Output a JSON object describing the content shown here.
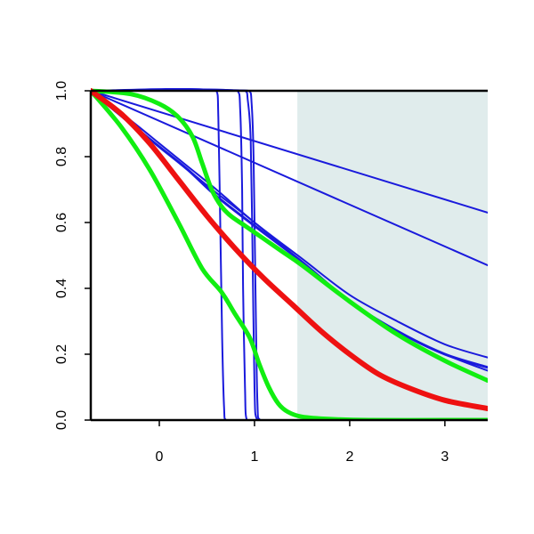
{
  "chart_data": {
    "type": "line",
    "title": "",
    "xlabel": "",
    "ylabel": "",
    "xlim": [
      -0.72,
      3.45
    ],
    "ylim": [
      0.0,
      1.0
    ],
    "grid": false,
    "x_ticks": [
      0,
      1,
      2,
      3
    ],
    "x_tick_labels": [
      "0",
      "1",
      "2",
      "3"
    ],
    "y_ticks": [
      0.0,
      0.2,
      0.4,
      0.6,
      0.8,
      1.0
    ],
    "y_tick_labels": [
      "0.0",
      "0.2",
      "0.4",
      "0.6",
      "0.8",
      "1.0"
    ],
    "shaded_region": {
      "x_start": 1.45,
      "x_end": 3.45,
      "color": "#e0ecec"
    },
    "colors": {
      "blue": "#1a1adc",
      "green": "#11ee11",
      "red": "#ee1111",
      "axis": "#000000"
    },
    "series": [
      {
        "color": "blue",
        "width": 2,
        "x": [
          -0.72,
          3.45
        ],
        "y": [
          1.0,
          0.63
        ]
      },
      {
        "color": "blue",
        "width": 2,
        "x": [
          -0.72,
          3.45
        ],
        "y": [
          1.0,
          0.47
        ]
      },
      {
        "color": "blue",
        "width": 2,
        "x": [
          -0.72,
          -0.3,
          0.0,
          0.3,
          0.6,
          1.0,
          1.5,
          2.0,
          2.5,
          3.0,
          3.45
        ],
        "y": [
          1.0,
          0.91,
          0.84,
          0.77,
          0.7,
          0.6,
          0.49,
          0.38,
          0.3,
          0.23,
          0.19
        ]
      },
      {
        "color": "blue",
        "width": 2,
        "x": [
          -0.72,
          -0.3,
          0.0,
          0.3,
          0.6,
          1.0,
          1.5,
          2.0,
          2.5,
          3.0,
          3.45
        ],
        "y": [
          1.0,
          0.9,
          0.83,
          0.76,
          0.69,
          0.6,
          0.48,
          0.36,
          0.27,
          0.2,
          0.15
        ]
      },
      {
        "color": "blue",
        "width": 3,
        "x": [
          -0.72,
          -0.3,
          0.0,
          0.3,
          0.6,
          1.0,
          1.5,
          2.0,
          2.5,
          3.0,
          3.45
        ],
        "y": [
          1.0,
          0.9,
          0.83,
          0.76,
          0.68,
          0.59,
          0.48,
          0.36,
          0.27,
          0.2,
          0.16
        ]
      },
      {
        "color": "blue",
        "width": 2,
        "x": [
          -0.72,
          0.6,
          0.62,
          0.64,
          0.66,
          0.68,
          0.7,
          3.45
        ],
        "y": [
          1.0,
          1.0,
          0.92,
          0.6,
          0.25,
          0.04,
          0.0,
          0.0
        ]
      },
      {
        "color": "blue",
        "width": 2,
        "x": [
          -0.72,
          0.82,
          0.85,
          0.87,
          0.88,
          0.9,
          0.92,
          3.45
        ],
        "y": [
          1.0,
          1.0,
          0.94,
          0.7,
          0.4,
          0.1,
          0.0,
          0.0
        ]
      },
      {
        "color": "blue",
        "width": 2,
        "x": [
          -0.72,
          0.9,
          0.93,
          0.96,
          0.98,
          1.0,
          1.03,
          3.45
        ],
        "y": [
          1.0,
          1.0,
          0.97,
          0.85,
          0.5,
          0.1,
          0.0,
          0.0
        ]
      },
      {
        "color": "blue",
        "width": 2,
        "x": [
          -0.72,
          0.94,
          0.97,
          0.99,
          1.01,
          1.03,
          1.06,
          3.45
        ],
        "y": [
          1.0,
          1.0,
          0.96,
          0.8,
          0.4,
          0.06,
          0.0,
          0.0
        ]
      },
      {
        "color": "green",
        "width": 5,
        "x": [
          -0.72,
          -0.3,
          0.0,
          0.2,
          0.35,
          0.45,
          0.55,
          0.65,
          0.75,
          0.9,
          1.1,
          1.3,
          1.5,
          2.0,
          2.5,
          3.0,
          3.45
        ],
        "y": [
          1.0,
          0.99,
          0.96,
          0.92,
          0.86,
          0.78,
          0.7,
          0.65,
          0.62,
          0.59,
          0.55,
          0.51,
          0.47,
          0.36,
          0.26,
          0.18,
          0.12
        ]
      },
      {
        "color": "green",
        "width": 5,
        "x": [
          -0.72,
          -0.4,
          -0.1,
          0.2,
          0.45,
          0.65,
          0.8,
          0.95,
          1.05,
          1.15,
          1.25,
          1.35,
          1.5,
          1.8,
          2.2,
          3.0,
          3.45
        ],
        "y": [
          1.0,
          0.89,
          0.76,
          0.6,
          0.46,
          0.39,
          0.32,
          0.25,
          0.17,
          0.1,
          0.05,
          0.025,
          0.01,
          0.003,
          0.0,
          0.0,
          0.0
        ]
      },
      {
        "color": "red",
        "width": 6,
        "x": [
          -0.72,
          -0.4,
          -0.1,
          0.2,
          0.5,
          0.8,
          1.1,
          1.4,
          1.7,
          2.0,
          2.3,
          2.6,
          3.0,
          3.45
        ],
        "y": [
          1.0,
          0.93,
          0.84,
          0.73,
          0.62,
          0.52,
          0.43,
          0.35,
          0.27,
          0.2,
          0.14,
          0.1,
          0.06,
          0.035
        ]
      }
    ]
  }
}
